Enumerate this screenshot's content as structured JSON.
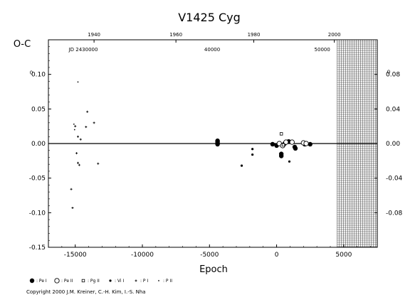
{
  "chart_data": {
    "type": "scatter",
    "title": "V1425  Cyg",
    "xlabel": "Epoch",
    "ylabel": "O-C",
    "xlim": [
      -17000,
      7500
    ],
    "ylim": [
      -0.15,
      0.15
    ],
    "x_ticks": [
      -15000,
      -10000,
      -5000,
      0,
      5000
    ],
    "x_tick_labels": [
      "-15000",
      "-10000",
      "-5000",
      "0",
      "5000"
    ],
    "y_ticks": [
      -0.15,
      -0.1,
      -0.05,
      0.0,
      0.05,
      0.1
    ],
    "y_tick_labels": [
      "-0.15",
      "-0.10",
      "-0.05",
      "0.00",
      "0.05",
      "0.10"
    ],
    "y_top_partial_label": "0",
    "right_axis": {
      "ticks": [
        -0.08,
        -0.04,
        0.0,
        0.04,
        0.08
      ],
      "tick_labels": [
        "-0.08",
        "-0.04",
        "0.00",
        "0.04",
        "0.08"
      ],
      "partial_label": "0"
    },
    "top_year_axis": {
      "ticks": [
        {
          "epoch": -13600,
          "label": "1940"
        },
        {
          "epoch": -7500,
          "label": "1960"
        },
        {
          "epoch": -1700,
          "label": "1980"
        },
        {
          "epoch": 4300,
          "label": "2000"
        }
      ]
    },
    "jd_axis": {
      "ticks": [
        {
          "epoch": -14400,
          "label": "JD  2430000"
        },
        {
          "epoch": -4800,
          "label": "40000"
        },
        {
          "epoch": 3400,
          "label": "50000"
        }
      ]
    },
    "future_region_start": 4500,
    "grid": false,
    "legend": [
      {
        "marker": "filled-large",
        "label": ": Pe I"
      },
      {
        "marker": "open-large",
        "label": ": Pe II"
      },
      {
        "marker": "open-square",
        "label": ": Pg II"
      },
      {
        "marker": "filled-small",
        "label": ": Vi I"
      },
      {
        "marker": "plus",
        "label": ": P I"
      },
      {
        "marker": "dot-small",
        "label": ": P II"
      }
    ],
    "series": [
      {
        "name": ": Pe I",
        "marker": "filled-large",
        "points": [
          [
            -4400,
            0.0
          ],
          [
            -4400,
            0.002
          ],
          [
            -4400,
            0.004
          ],
          [
            -4400,
            -0.001
          ],
          [
            -300,
            -0.001
          ],
          [
            0,
            -0.003
          ],
          [
            350,
            -0.015
          ],
          [
            350,
            -0.018
          ],
          [
            600,
            0.0
          ],
          [
            900,
            0.003
          ],
          [
            1350,
            -0.005
          ],
          [
            1400,
            -0.007
          ],
          [
            2100,
            -0.001
          ],
          [
            2500,
            -0.001
          ]
        ]
      },
      {
        "name": ": Pe II",
        "marker": "open-large",
        "points": [
          [
            200,
            0.0
          ],
          [
            450,
            -0.003
          ],
          [
            700,
            0.002
          ],
          [
            1150,
            0.002
          ],
          [
            2000,
            0.001
          ],
          [
            2200,
            0.0
          ]
        ]
      },
      {
        "name": ": Pg II",
        "marker": "open-square",
        "points": [
          [
            350,
            0.014
          ],
          [
            500,
            -0.002
          ]
        ]
      },
      {
        "name": ": Vi I",
        "marker": "filled-small",
        "points": [
          [
            -2600,
            -0.032
          ],
          [
            -1800,
            -0.016
          ],
          [
            -1800,
            -0.008
          ],
          [
            950,
            -0.026
          ]
        ]
      },
      {
        "name": ": P I",
        "marker": "plus",
        "points": [
          [
            -15300,
            -0.066
          ],
          [
            -15200,
            -0.093
          ],
          [
            -15000,
            0.025
          ],
          [
            -14800,
            0.01
          ],
          [
            -14600,
            0.006
          ],
          [
            -14900,
            -0.014
          ],
          [
            -14800,
            -0.028
          ],
          [
            -14700,
            -0.031
          ],
          [
            -13300,
            -0.029
          ],
          [
            -14200,
            0.024
          ],
          [
            -14100,
            0.046
          ],
          [
            -13600,
            0.03
          ]
        ]
      },
      {
        "name": ": P II",
        "marker": "dot-small",
        "points": [
          [
            -15100,
            0.028
          ],
          [
            -15050,
            0.02
          ],
          [
            -14800,
            0.089
          ]
        ]
      }
    ]
  },
  "copyright": "Copyright 2000 J.M. Kreiner, C.-H. Kim, I.-S. Nha"
}
